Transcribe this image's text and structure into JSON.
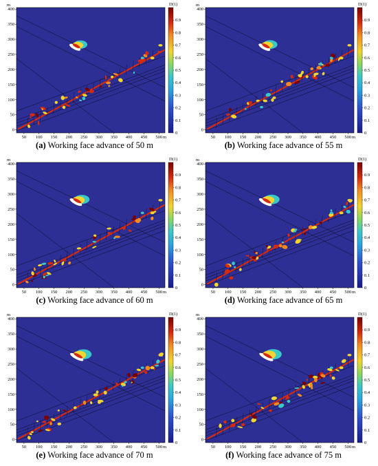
{
  "figure": {
    "panels": [
      {
        "letter": "(a)",
        "caption": "Working face advance of 50 m"
      },
      {
        "letter": "(b)",
        "caption": "Working face advance of 55 m"
      },
      {
        "letter": "(c)",
        "caption": "Working face advance of 60 m"
      },
      {
        "letter": "(d)",
        "caption": "Working face advance of 65 m"
      },
      {
        "letter": "(e)",
        "caption": "Working face advance of 70 m"
      },
      {
        "letter": "(f)",
        "caption": "Working face advance of 75 m"
      }
    ]
  },
  "colors": {
    "background": "#2e2f94",
    "low": "#2e2f94",
    "mid": "#3ac8c8",
    "high_mid": "#f2d530",
    "high": "#d42a10",
    "max": "#7a0000"
  },
  "chart_data": {
    "type": "heatmap",
    "x_unit": "m",
    "y_unit": "m",
    "colorbar_label": "D(1)",
    "xlim": [
      25,
      520
    ],
    "ylim": [
      -10,
      405
    ],
    "x_ticks": [
      50,
      100,
      150,
      200,
      250,
      300,
      350,
      400,
      450,
      500
    ],
    "y_ticks": [
      0,
      50,
      100,
      150,
      200,
      250,
      300,
      350,
      400
    ],
    "colorbar_ticks": [
      0,
      0.1,
      0.2,
      0.3,
      0.4,
      0.5,
      0.6,
      0.7,
      0.8,
      0.9
    ],
    "colorbar_range": [
      0,
      1
    ]
  }
}
